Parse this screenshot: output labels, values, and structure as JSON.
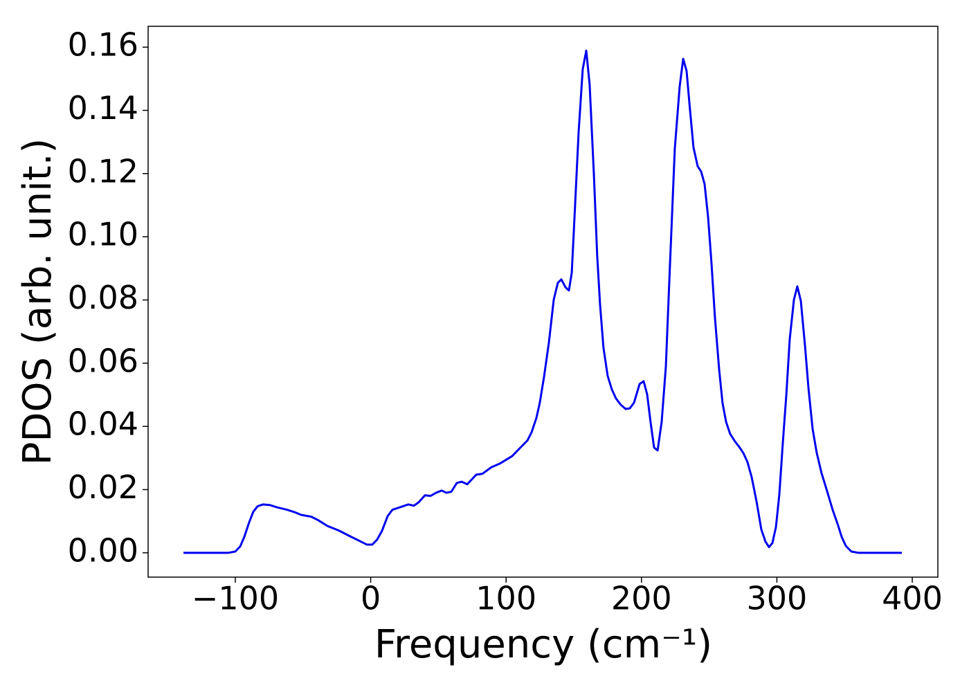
{
  "chart_data": {
    "type": "line",
    "x_label": "Frequency (cm⁻¹)",
    "y_label": "PDOS (arb. unit.)",
    "xlim": [
      -164.4,
      418.9
    ],
    "ylim": [
      -0.0077,
      0.1666
    ],
    "xticks": [
      {
        "value": -100,
        "label": "−100"
      },
      0,
      100,
      200,
      300,
      400
    ],
    "yticks": [
      {
        "value": 0,
        "label": "0.00"
      },
      {
        "value": 0.02,
        "label": "0.02"
      },
      {
        "value": 0.04,
        "label": "0.04"
      },
      {
        "value": 0.06,
        "label": "0.06"
      },
      {
        "value": 0.08,
        "label": "0.08"
      },
      {
        "value": 0.1,
        "label": "0.10"
      },
      {
        "value": 0.12,
        "label": "0.12"
      },
      {
        "value": 0.14,
        "label": "0.14"
      },
      {
        "value": 0.16,
        "label": "0.16"
      }
    ],
    "x": [
      -138.3,
      -105,
      -100,
      -96.4,
      -93.4,
      -89.8,
      -86.7,
      -83.6,
      -79.6,
      -74.4,
      -69.3,
      -61.7,
      -56.5,
      -51.4,
      -43.8,
      -38.7,
      -32,
      -23.3,
      -15.6,
      -8,
      -2.9,
      1.2,
      4.8,
      8.4,
      12.5,
      16,
      20.1,
      27.8,
      31.9,
      35.5,
      40.1,
      44.2,
      48.3,
      52.4,
      55.9,
      59.5,
      63.6,
      67.2,
      71.3,
      77.9,
      82.5,
      89.2,
      95.3,
      104.5,
      110.6,
      115.7,
      118.8,
      122.4,
      124.9,
      128,
      131.6,
      135.2,
      138.2,
      140.8,
      143.9,
      146.4,
      148.5,
      150.5,
      153.6,
      156.6,
      159.2,
      161.7,
      164.8,
      167.3,
      169.4,
      171.9,
      175,
      178.1,
      181.2,
      184.8,
      188.3,
      191.4,
      194.5,
      198.6,
      201.6,
      204.2,
      206.7,
      209.3,
      211.9,
      214.9,
      218,
      221.1,
      224.6,
      228.2,
      230.8,
      233.3,
      235.9,
      238.4,
      241.5,
      244.1,
      246.6,
      249.2,
      251.7,
      254.3,
      257.4,
      259.9,
      262.5,
      265.5,
      269.1,
      272.2,
      275.3,
      278.3,
      281.4,
      285,
      288.5,
      291.6,
      294.2,
      296.7,
      299.3,
      301.8,
      304.4,
      307,
      309.5,
      312.6,
      315.1,
      317.7,
      320.8,
      323.3,
      326.4,
      329.4,
      333,
      337.1,
      341.2,
      344.8,
      347.9,
      350.9,
      355,
      360.1,
      392.3
    ],
    "series": [
      {
        "color": "#0000ee",
        "values": [
          0,
          0,
          0.0004,
          0.002,
          0.005,
          0.0096,
          0.013,
          0.0147,
          0.0153,
          0.0151,
          0.0144,
          0.0136,
          0.0129,
          0.012,
          0.0114,
          0.0103,
          0.0085,
          0.007,
          0.0053,
          0.0037,
          0.0026,
          0.0026,
          0.0042,
          0.007,
          0.0116,
          0.0136,
          0.0142,
          0.0153,
          0.0149,
          0.016,
          0.0182,
          0.018,
          0.019,
          0.0197,
          0.019,
          0.0193,
          0.0221,
          0.0225,
          0.0217,
          0.0247,
          0.025,
          0.0271,
          0.0282,
          0.0306,
          0.0333,
          0.0355,
          0.0381,
          0.0427,
          0.0475,
          0.0556,
          0.0665,
          0.0801,
          0.0854,
          0.0865,
          0.084,
          0.083,
          0.0886,
          0.1059,
          0.1333,
          0.153,
          0.1589,
          0.1482,
          0.1202,
          0.0939,
          0.0786,
          0.065,
          0.056,
          0.0517,
          0.0488,
          0.0468,
          0.0455,
          0.0457,
          0.0475,
          0.0534,
          0.0543,
          0.0501,
          0.0414,
          0.0333,
          0.0324,
          0.0414,
          0.0589,
          0.0917,
          0.1278,
          0.1475,
          0.1563,
          0.1525,
          0.1399,
          0.1283,
          0.1223,
          0.1206,
          0.1167,
          0.1062,
          0.0917,
          0.0742,
          0.0578,
          0.0473,
          0.0414,
          0.0376,
          0.0352,
          0.0335,
          0.0315,
          0.0287,
          0.0239,
          0.0162,
          0.0074,
          0.0035,
          0.0018,
          0.0031,
          0.0081,
          0.0184,
          0.0348,
          0.0501,
          0.0676,
          0.0801,
          0.0843,
          0.0797,
          0.0654,
          0.0523,
          0.0392,
          0.0317,
          0.0252,
          0.0195,
          0.0136,
          0.0092,
          0.005,
          0.0022,
          0.0004,
          0,
          0
        ]
      }
    ]
  }
}
